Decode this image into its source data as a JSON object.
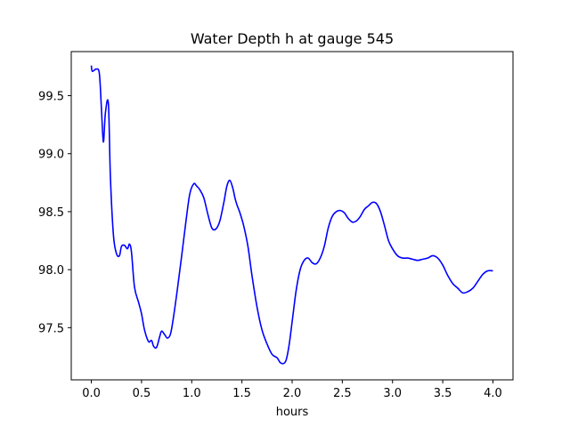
{
  "chart_data": {
    "type": "line",
    "title": "Water Depth h at gauge 545",
    "xlabel": "hours",
    "ylabel": "",
    "xlim": [
      -0.2,
      4.2
    ],
    "ylim": [
      97.05,
      99.88
    ],
    "xticks": [
      0.0,
      0.5,
      1.0,
      1.5,
      2.0,
      2.5,
      3.0,
      3.5,
      4.0
    ],
    "xtick_labels": [
      "0.0",
      "0.5",
      "1.0",
      "1.5",
      "2.0",
      "2.5",
      "3.0",
      "3.5",
      "4.0"
    ],
    "yticks": [
      97.5,
      98.0,
      98.5,
      99.0,
      99.5
    ],
    "ytick_labels": [
      "97.5",
      "98.0",
      "98.5",
      "99.0",
      "99.5"
    ],
    "grid": false,
    "series": [
      {
        "color": "#0000ff",
        "x": [
          0.0,
          0.01,
          0.05,
          0.08,
          0.1,
          0.12,
          0.14,
          0.17,
          0.19,
          0.22,
          0.25,
          0.28,
          0.3,
          0.33,
          0.36,
          0.38,
          0.4,
          0.43,
          0.47,
          0.5,
          0.53,
          0.57,
          0.6,
          0.62,
          0.65,
          0.68,
          0.7,
          0.73,
          0.76,
          0.79,
          0.82,
          0.86,
          0.9,
          0.94,
          0.98,
          1.02,
          1.05,
          1.08,
          1.12,
          1.16,
          1.2,
          1.24,
          1.28,
          1.32,
          1.35,
          1.38,
          1.41,
          1.43,
          1.45,
          1.48,
          1.52,
          1.56,
          1.6,
          1.65,
          1.7,
          1.75,
          1.8,
          1.85,
          1.88,
          1.91,
          1.94,
          1.97,
          2.0,
          2.04,
          2.08,
          2.12,
          2.16,
          2.2,
          2.24,
          2.28,
          2.32,
          2.36,
          2.4,
          2.44,
          2.48,
          2.52,
          2.56,
          2.6,
          2.64,
          2.68,
          2.72,
          2.76,
          2.8,
          2.84,
          2.88,
          2.92,
          2.96,
          3.0,
          3.05,
          3.1,
          3.15,
          3.2,
          3.25,
          3.3,
          3.35,
          3.4,
          3.45,
          3.5,
          3.55,
          3.6,
          3.65,
          3.7,
          3.75,
          3.8,
          3.85,
          3.9,
          3.95,
          4.0
        ],
        "y": [
          99.76,
          99.71,
          99.73,
          99.69,
          99.4,
          99.1,
          99.35,
          99.43,
          98.8,
          98.3,
          98.14,
          98.12,
          98.2,
          98.21,
          98.18,
          98.22,
          98.15,
          97.85,
          97.72,
          97.62,
          97.48,
          97.38,
          97.39,
          97.34,
          97.33,
          97.42,
          97.47,
          97.44,
          97.41,
          97.45,
          97.6,
          97.85,
          98.12,
          98.4,
          98.65,
          98.74,
          98.72,
          98.69,
          98.62,
          98.48,
          98.36,
          98.35,
          98.42,
          98.58,
          98.72,
          98.77,
          98.7,
          98.62,
          98.56,
          98.49,
          98.37,
          98.2,
          97.95,
          97.68,
          97.48,
          97.36,
          97.27,
          97.24,
          97.2,
          97.19,
          97.22,
          97.35,
          97.55,
          97.82,
          98.0,
          98.08,
          98.1,
          98.06,
          98.05,
          98.1,
          98.2,
          98.36,
          98.46,
          98.5,
          98.51,
          98.49,
          98.44,
          98.41,
          98.42,
          98.46,
          98.52,
          98.55,
          98.58,
          98.57,
          98.5,
          98.38,
          98.25,
          98.18,
          98.12,
          98.1,
          98.1,
          98.09,
          98.08,
          98.09,
          98.1,
          98.12,
          98.1,
          98.04,
          97.95,
          97.88,
          97.84,
          97.8,
          97.81,
          97.84,
          97.9,
          97.96,
          97.99,
          97.99
        ]
      }
    ]
  }
}
